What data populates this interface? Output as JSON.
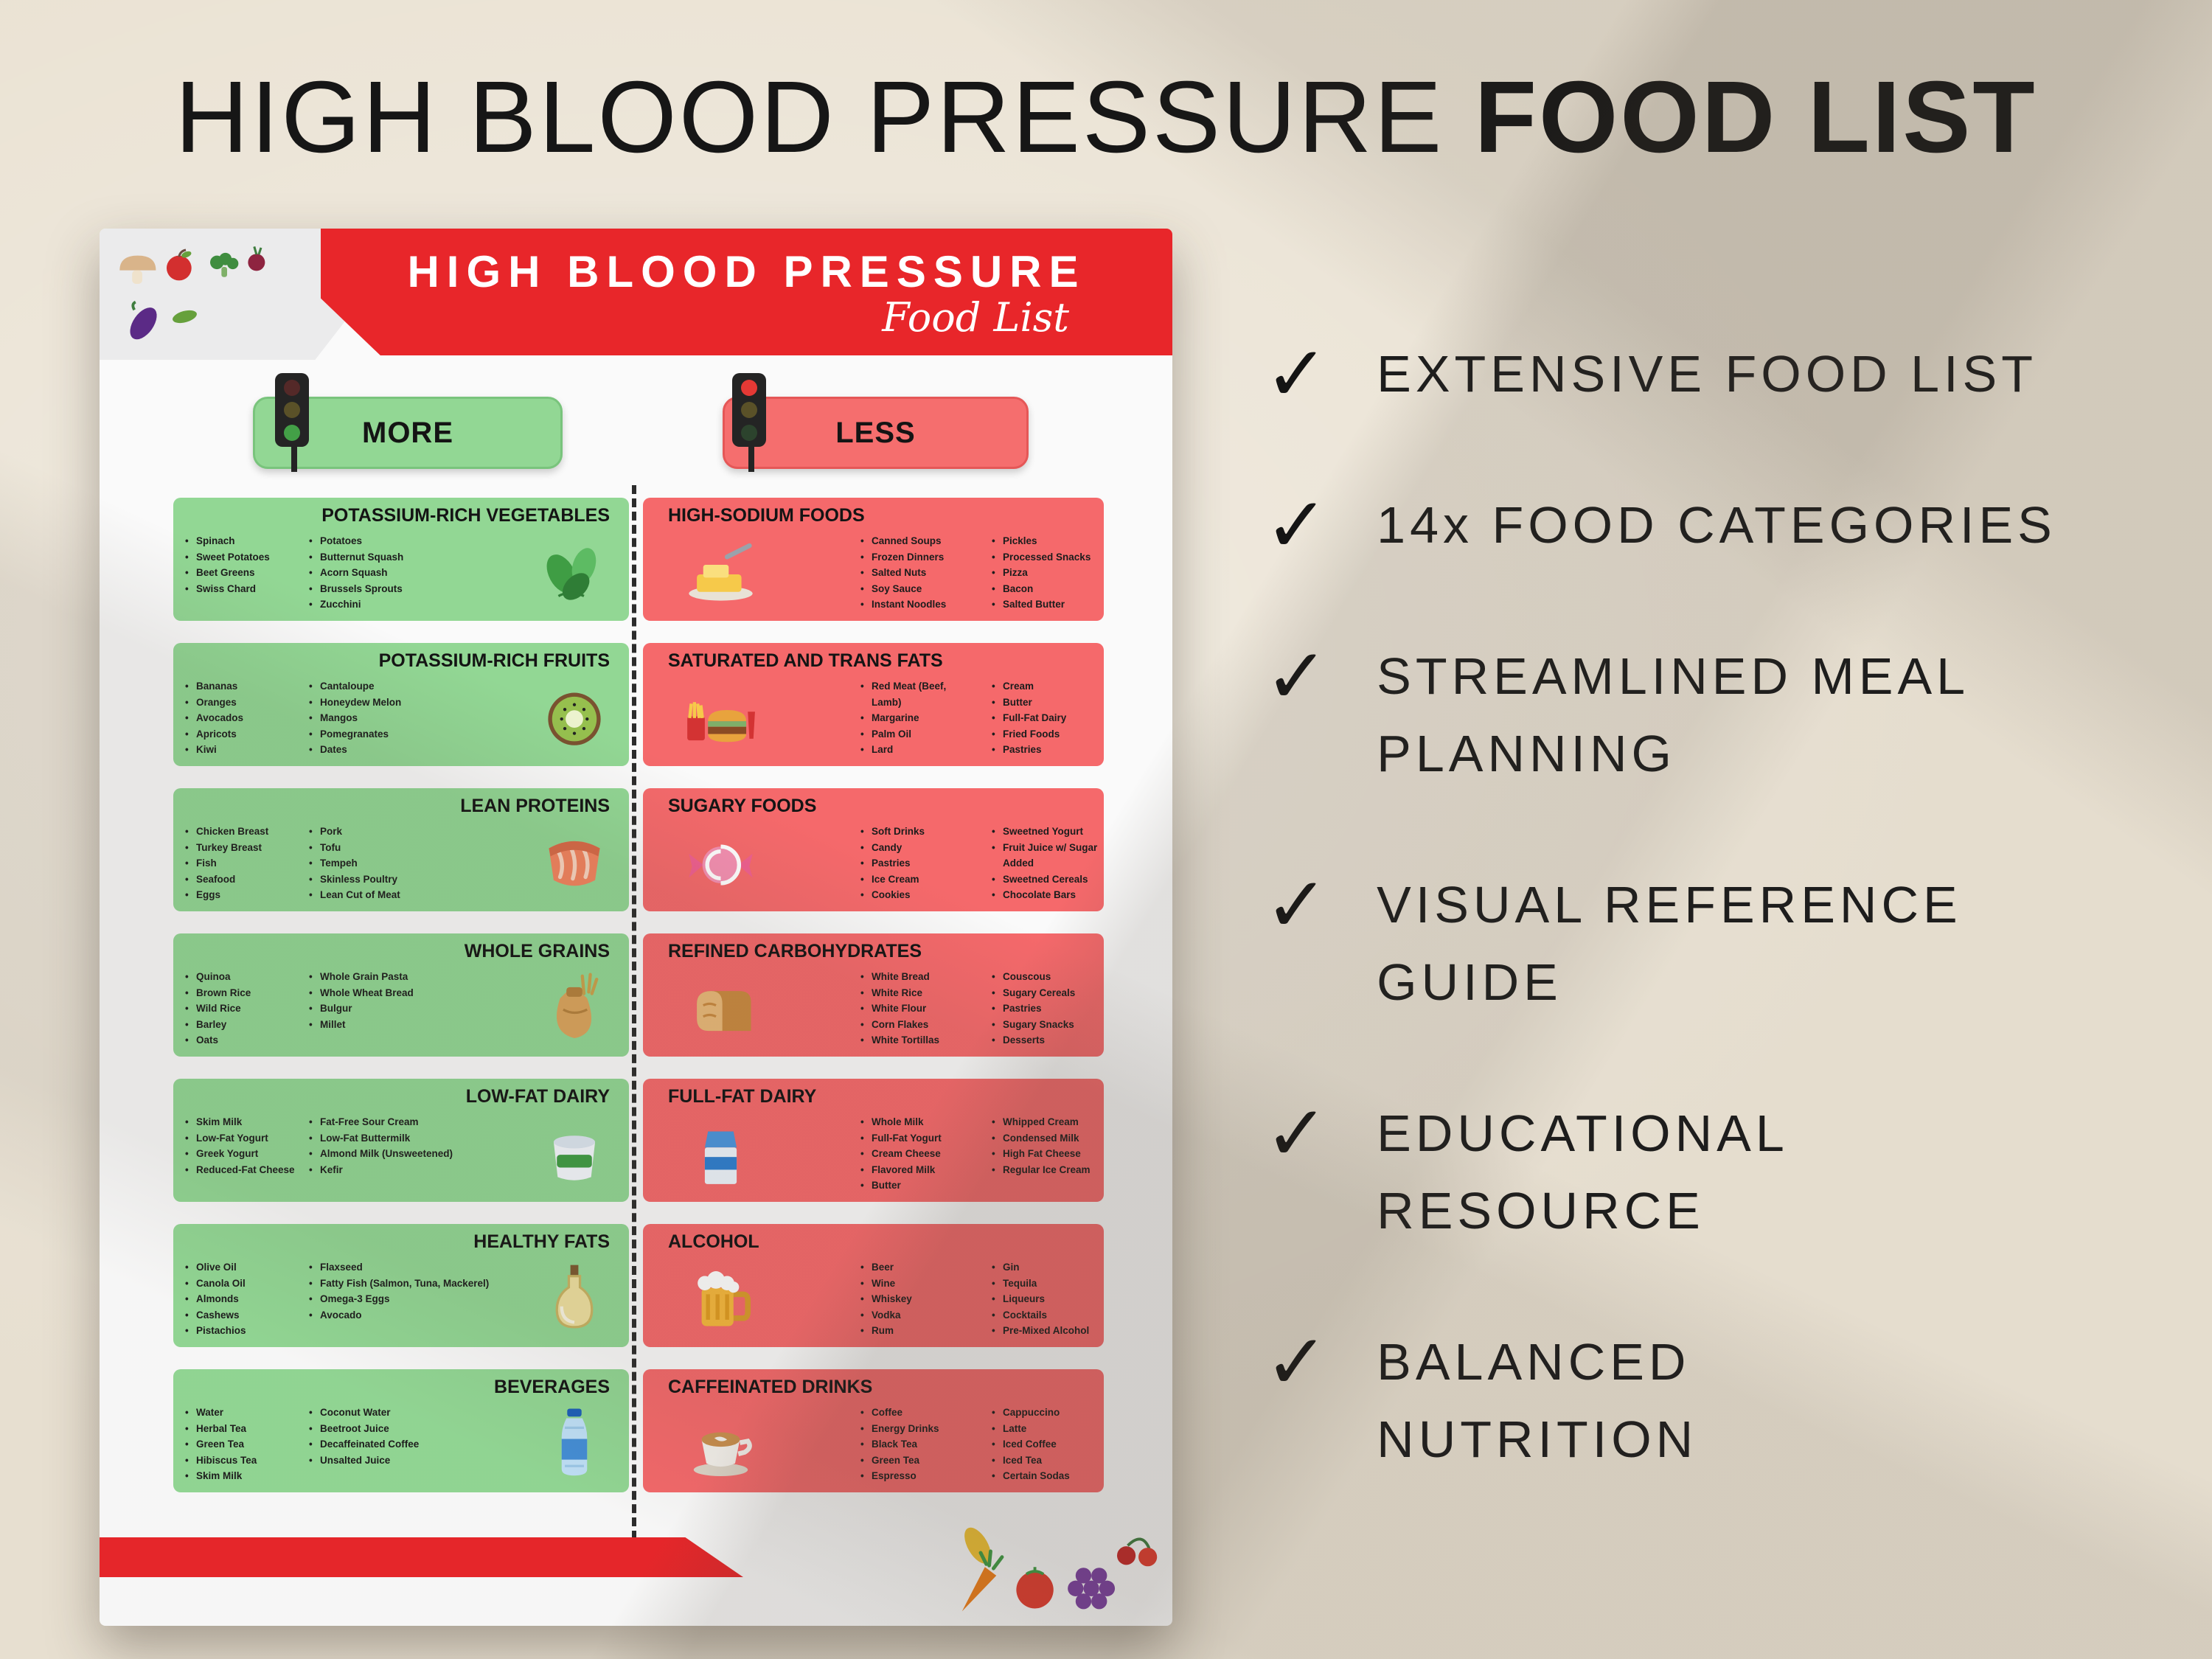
{
  "page_title": {
    "light": "HIGH BLOOD PRESSURE ",
    "bold": "FOOD LIST"
  },
  "poster": {
    "banner_title": "HIGH BLOOD PRESSURE",
    "banner_subtitle": "Food List",
    "more_label": "MORE",
    "less_label": "LESS",
    "colors": {
      "banner_red": "#e8262a",
      "more_green": "#92d794",
      "less_red": "#f5696b"
    },
    "more_categories": [
      {
        "title": "POTASSIUM-RICH VEGETABLES",
        "icon": "spinach-icon",
        "col1": [
          "Spinach",
          "Sweet Potatoes",
          "Beet Greens",
          "Swiss Chard"
        ],
        "col2": [
          "Potatoes",
          "Butternut Squash",
          "Acorn Squash",
          "Brussels Sprouts",
          "Zucchini"
        ]
      },
      {
        "title": "POTASSIUM-RICH FRUITS",
        "icon": "kiwi-icon",
        "col1": [
          "Bananas",
          "Oranges",
          "Avocados",
          "Apricots",
          "Kiwi"
        ],
        "col2": [
          "Cantaloupe",
          "Honeydew Melon",
          "Mangos",
          "Pomegranates",
          "Dates"
        ]
      },
      {
        "title": "LEAN PROTEINS",
        "icon": "salmon-icon",
        "col1": [
          "Chicken Breast",
          "Turkey Breast",
          "Fish",
          "Seafood",
          "Eggs"
        ],
        "col2": [
          "Pork",
          "Tofu",
          "Tempeh",
          "Skinless Poultry",
          "Lean Cut of Meat"
        ]
      },
      {
        "title": "WHOLE GRAINS",
        "icon": "grain-sack-icon",
        "col1": [
          "Quinoa",
          "Brown Rice",
          "Wild Rice",
          "Barley",
          "Oats"
        ],
        "col2": [
          "Whole Grain Pasta",
          "Whole Wheat Bread",
          "Bulgur",
          "Millet"
        ]
      },
      {
        "title": "LOW-FAT DAIRY",
        "icon": "sour-cream-icon",
        "col1": [
          "Skim Milk",
          "Low-Fat Yogurt",
          "Greek Yogurt",
          "Reduced-Fat Cheese"
        ],
        "col2": [
          "Fat-Free Sour Cream",
          "Low-Fat Buttermilk",
          "Almond Milk (Unsweetened)",
          "Kefir"
        ]
      },
      {
        "title": "HEALTHY FATS",
        "icon": "oil-bottle-icon",
        "col1": [
          "Olive Oil",
          "Canola Oil",
          "Almonds",
          "Cashews",
          "Pistachios"
        ],
        "col2": [
          "Flaxseed",
          "Fatty Fish (Salmon, Tuna, Mackerel)",
          "Omega-3 Eggs",
          "Avocado"
        ]
      },
      {
        "title": "BEVERAGES",
        "icon": "water-bottle-icon",
        "col1": [
          "Water",
          "Herbal Tea",
          "Green Tea",
          "Hibiscus Tea",
          "Skim Milk"
        ],
        "col2": [
          "Coconut Water",
          "Beetroot Juice",
          "Decaffeinated Coffee",
          "Unsalted Juice"
        ]
      }
    ],
    "less_categories": [
      {
        "title": "HIGH-SODIUM FOODS",
        "icon": "butter-icon",
        "col1": [
          "Canned Soups",
          "Frozen Dinners",
          "Salted Nuts",
          "Soy Sauce",
          "Instant Noodles"
        ],
        "col2": [
          "Pickles",
          "Processed Snacks",
          "Pizza",
          "Bacon",
          "Salted Butter"
        ]
      },
      {
        "title": "SATURATED AND TRANS FATS",
        "icon": "fast-food-icon",
        "col1": [
          "Red Meat (Beef, Lamb)",
          "Margarine",
          "Palm Oil",
          "Lard"
        ],
        "col2": [
          "Cream",
          "Butter",
          "Full-Fat Dairy",
          "Fried Foods",
          "Pastries"
        ]
      },
      {
        "title": "SUGARY FOODS",
        "icon": "candy-icon",
        "col1": [
          "Soft Drinks",
          "Candy",
          "Pastries",
          "Ice Cream",
          "Cookies"
        ],
        "col2": [
          "Sweetned Yogurt",
          "Fruit Juice w/ Sugar Added",
          "Sweetned Cereals",
          "Chocolate Bars"
        ]
      },
      {
        "title": "REFINED CARBOHYDRATES",
        "icon": "bread-icon",
        "col1": [
          "White Bread",
          "White Rice",
          "White Flour",
          "Corn Flakes",
          "White Tortillas"
        ],
        "col2": [
          "Couscous",
          "Sugary Cereals",
          "Pastries",
          "Sugary Snacks",
          "Desserts"
        ]
      },
      {
        "title": "FULL-FAT DAIRY",
        "icon": "milk-carton-icon",
        "col1": [
          "Whole Milk",
          "Full-Fat Yogurt",
          "Cream Cheese",
          "Flavored Milk",
          "Butter"
        ],
        "col2": [
          "Whipped Cream",
          "Condensed Milk",
          "High Fat Cheese",
          "Regular Ice Cream"
        ]
      },
      {
        "title": "ALCOHOL",
        "icon": "beer-mug-icon",
        "col1": [
          "Beer",
          "Wine",
          "Whiskey",
          "Vodka",
          "Rum"
        ],
        "col2": [
          "Gin",
          "Tequila",
          "Liqueurs",
          "Cocktails",
          "Pre-Mixed Alcohol"
        ]
      },
      {
        "title": "CAFFEINATED DRINKS",
        "icon": "coffee-cup-icon",
        "col1": [
          "Coffee",
          "Energy Drinks",
          "Black Tea",
          "Green Tea",
          "Espresso"
        ],
        "col2": [
          "Cappuccino",
          "Latte",
          "Iced Coffee",
          "Iced Tea",
          "Certain Sodas"
        ]
      }
    ]
  },
  "features": [
    "EXTENSIVE FOOD LIST",
    "14x FOOD CATEGORIES",
    "STREAMLINED MEAL\nPLANNING",
    "VISUAL REFERENCE\nGUIDE",
    "EDUCATIONAL\nRESOURCE",
    "BALANCED\nNUTRITION"
  ]
}
